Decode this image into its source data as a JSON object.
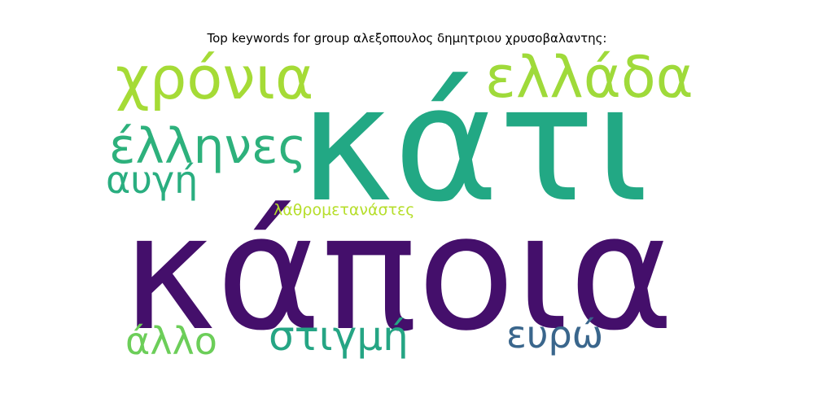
{
  "title": "Top keywords for group αλεξοπουλος δημητριου χρυσοβαλαντης:",
  "words": [
    {
      "text": "κάποια",
      "color": "#440f6b"
    },
    {
      "text": "κάτι",
      "color": "#22a884"
    },
    {
      "text": "χρόνια",
      "color": "#a5db36"
    },
    {
      "text": "ελλάδα",
      "color": "#9fda3a"
    },
    {
      "text": "έλληνες",
      "color": "#2db17c"
    },
    {
      "text": "αυγή",
      "color": "#2aae80"
    },
    {
      "text": "λαθρομετανάστες",
      "color": "#b6de2b"
    },
    {
      "text": "άλλο",
      "color": "#6cce59"
    },
    {
      "text": "στιγμή",
      "color": "#25a584"
    },
    {
      "text": "ευρώ",
      "color": "#3a668c"
    }
  ]
}
